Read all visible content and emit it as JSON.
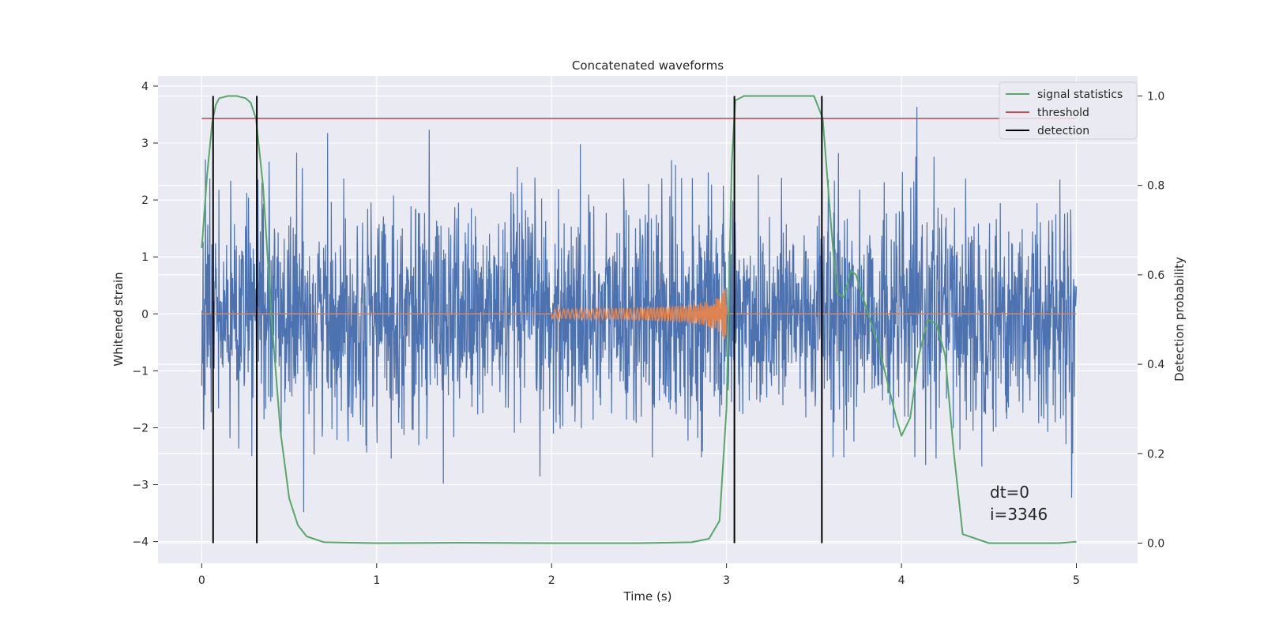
{
  "chart_data": {
    "type": "line",
    "title": "Concatenated waveforms",
    "xlabel": "Time (s)",
    "ylabel_left": "Whitened strain",
    "ylabel_right": "Detection probability",
    "xlim": [
      -0.25,
      5.35
    ],
    "ylim_left": [
      -4.38,
      4.18
    ],
    "ylim_right": [
      -0.045,
      1.045
    ],
    "x_ticks": [
      0,
      1,
      2,
      3,
      4,
      5
    ],
    "x_tick_labels": [
      "0",
      "1",
      "2",
      "3",
      "4",
      "5"
    ],
    "y_left_ticks": [
      -4,
      -3,
      -2,
      -1,
      0,
      1,
      2,
      3,
      4
    ],
    "y_left_tick_labels": [
      "−4",
      "−3",
      "−2",
      "−1",
      "0",
      "1",
      "2",
      "3",
      "4"
    ],
    "y_right_ticks": [
      0.0,
      0.2,
      0.4,
      0.6,
      0.8,
      1.0
    ],
    "y_right_tick_labels": [
      "0.0",
      "0.2",
      "0.4",
      "0.6",
      "0.8",
      "1.0"
    ],
    "grid": true,
    "legend_position": "top-right",
    "legend": [
      "signal statistics",
      "threshold",
      "detection"
    ],
    "colors": {
      "noise": "#4c72b0",
      "template": "#dd8452",
      "signal_statistics": "#55a868",
      "threshold": "#c44e52",
      "detection": "#000000",
      "background": "#eaeaf2",
      "grid": "#ffffff"
    },
    "series": [
      {
        "name": "signal statistics",
        "axis": "right",
        "x": [
          0,
          0.03,
          0.06,
          0.08,
          0.1,
          0.15,
          0.2,
          0.25,
          0.28,
          0.31,
          0.35,
          0.4,
          0.45,
          0.5,
          0.55,
          0.6,
          0.7,
          1.0,
          1.5,
          2.0,
          2.5,
          2.8,
          2.9,
          2.96,
          3.0,
          3.03,
          3.05,
          3.1,
          3.2,
          3.4,
          3.5,
          3.55,
          3.6,
          3.63,
          3.67,
          3.71,
          3.74,
          3.78,
          3.82,
          3.87,
          3.92,
          3.97,
          4.0,
          4.05,
          4.1,
          4.15,
          4.2,
          4.25,
          4.3,
          4.35,
          4.5,
          4.7,
          4.9,
          5.0
        ],
        "values": [
          0.66,
          0.82,
          0.94,
          0.98,
          0.995,
          1.0,
          1.0,
          0.995,
          0.985,
          0.95,
          0.8,
          0.5,
          0.25,
          0.1,
          0.04,
          0.015,
          0.002,
          0.0,
          0.001,
          0.0,
          0.0,
          0.002,
          0.01,
          0.05,
          0.3,
          0.85,
          0.99,
          1.0,
          1.0,
          1.0,
          1.0,
          0.95,
          0.7,
          0.56,
          0.55,
          0.61,
          0.6,
          0.55,
          0.5,
          0.44,
          0.36,
          0.28,
          0.24,
          0.28,
          0.42,
          0.5,
          0.49,
          0.42,
          0.2,
          0.02,
          0.0,
          0.0,
          0.0,
          0.003
        ]
      },
      {
        "name": "threshold",
        "axis": "right",
        "x": [
          0,
          5.0
        ],
        "values": [
          0.95,
          0.95
        ]
      },
      {
        "name": "detection",
        "axis": "right",
        "x": [
          0.065,
          0.315,
          3.045,
          3.545
        ],
        "values": [
          1.0,
          1.0,
          1.0,
          1.0
        ]
      }
    ],
    "annotations": [
      "dt=0",
      "i=3346"
    ]
  }
}
